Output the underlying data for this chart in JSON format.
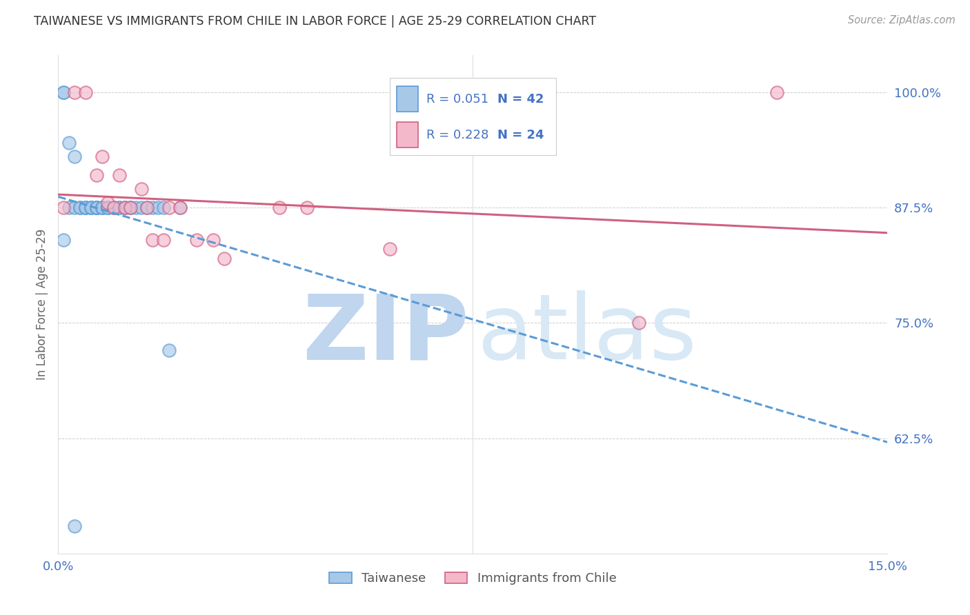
{
  "title": "TAIWANESE VS IMMIGRANTS FROM CHILE IN LABOR FORCE | AGE 25-29 CORRELATION CHART",
  "source": "Source: ZipAtlas.com",
  "ylabel": "In Labor Force | Age 25-29",
  "xlim": [
    0.0,
    0.15
  ],
  "ylim": [
    0.5,
    1.04
  ],
  "yticks": [
    0.625,
    0.75,
    0.875,
    1.0
  ],
  "ytick_labels": [
    "62.5%",
    "75.0%",
    "87.5%",
    "100.0%"
  ],
  "xticks": [
    0.0,
    0.05,
    0.1,
    0.15
  ],
  "xtick_labels": [
    "0.0%",
    "",
    "",
    "15.0%"
  ],
  "background_color": "#ffffff",
  "grid_color": "#cccccc",
  "title_color": "#333333",
  "tick_color": "#4472c4",
  "source_color": "#999999",
  "ylabel_color": "#666666",
  "series1_face": "#a8c8e8",
  "series1_edge": "#5b9bd5",
  "series2_face": "#f4b8cb",
  "series2_edge": "#d06080",
  "trendline1_color": "#5b9bd5",
  "trendline2_color": "#d06080",
  "legend_box_edge": "#cccccc",
  "legend1_label": "Taiwanese",
  "legend2_label": "Immigrants from Chile",
  "scatter_size": 180,
  "scatter_alpha": 0.65,
  "trendline_lw": 2.2,
  "marker_lw": 1.5,
  "taiwanese_x": [
    0.001,
    0.001,
    0.002,
    0.002,
    0.003,
    0.003,
    0.004,
    0.004,
    0.005,
    0.005,
    0.005,
    0.006,
    0.006,
    0.006,
    0.007,
    0.007,
    0.007,
    0.007,
    0.008,
    0.008,
    0.008,
    0.009,
    0.009,
    0.009,
    0.01,
    0.01,
    0.011,
    0.011,
    0.012,
    0.012,
    0.013,
    0.013,
    0.014,
    0.015,
    0.016,
    0.017,
    0.018,
    0.019,
    0.02,
    0.022,
    0.001,
    0.003
  ],
  "taiwanese_y": [
    1.0,
    1.0,
    0.945,
    0.875,
    0.875,
    0.93,
    0.875,
    0.875,
    0.875,
    0.875,
    0.875,
    0.875,
    0.875,
    0.875,
    0.875,
    0.875,
    0.875,
    0.875,
    0.875,
    0.875,
    0.875,
    0.875,
    0.875,
    0.875,
    0.875,
    0.875,
    0.875,
    0.875,
    0.875,
    0.875,
    0.875,
    0.875,
    0.875,
    0.875,
    0.875,
    0.875,
    0.875,
    0.875,
    0.72,
    0.875,
    0.84,
    0.53
  ],
  "chile_x": [
    0.001,
    0.003,
    0.005,
    0.007,
    0.008,
    0.009,
    0.01,
    0.011,
    0.012,
    0.013,
    0.015,
    0.016,
    0.017,
    0.019,
    0.02,
    0.022,
    0.025,
    0.028,
    0.03,
    0.04,
    0.045,
    0.06,
    0.105,
    0.13
  ],
  "chile_y": [
    0.875,
    1.0,
    1.0,
    0.91,
    0.93,
    0.88,
    0.875,
    0.91,
    0.875,
    0.875,
    0.895,
    0.875,
    0.84,
    0.84,
    0.875,
    0.875,
    0.84,
    0.84,
    0.82,
    0.875,
    0.875,
    0.83,
    0.75,
    1.0
  ],
  "trendline1_x_start": 0.001,
  "trendline1_x_end": 0.15,
  "trendline2_x_start": 0.001,
  "trendline2_x_end": 0.15
}
